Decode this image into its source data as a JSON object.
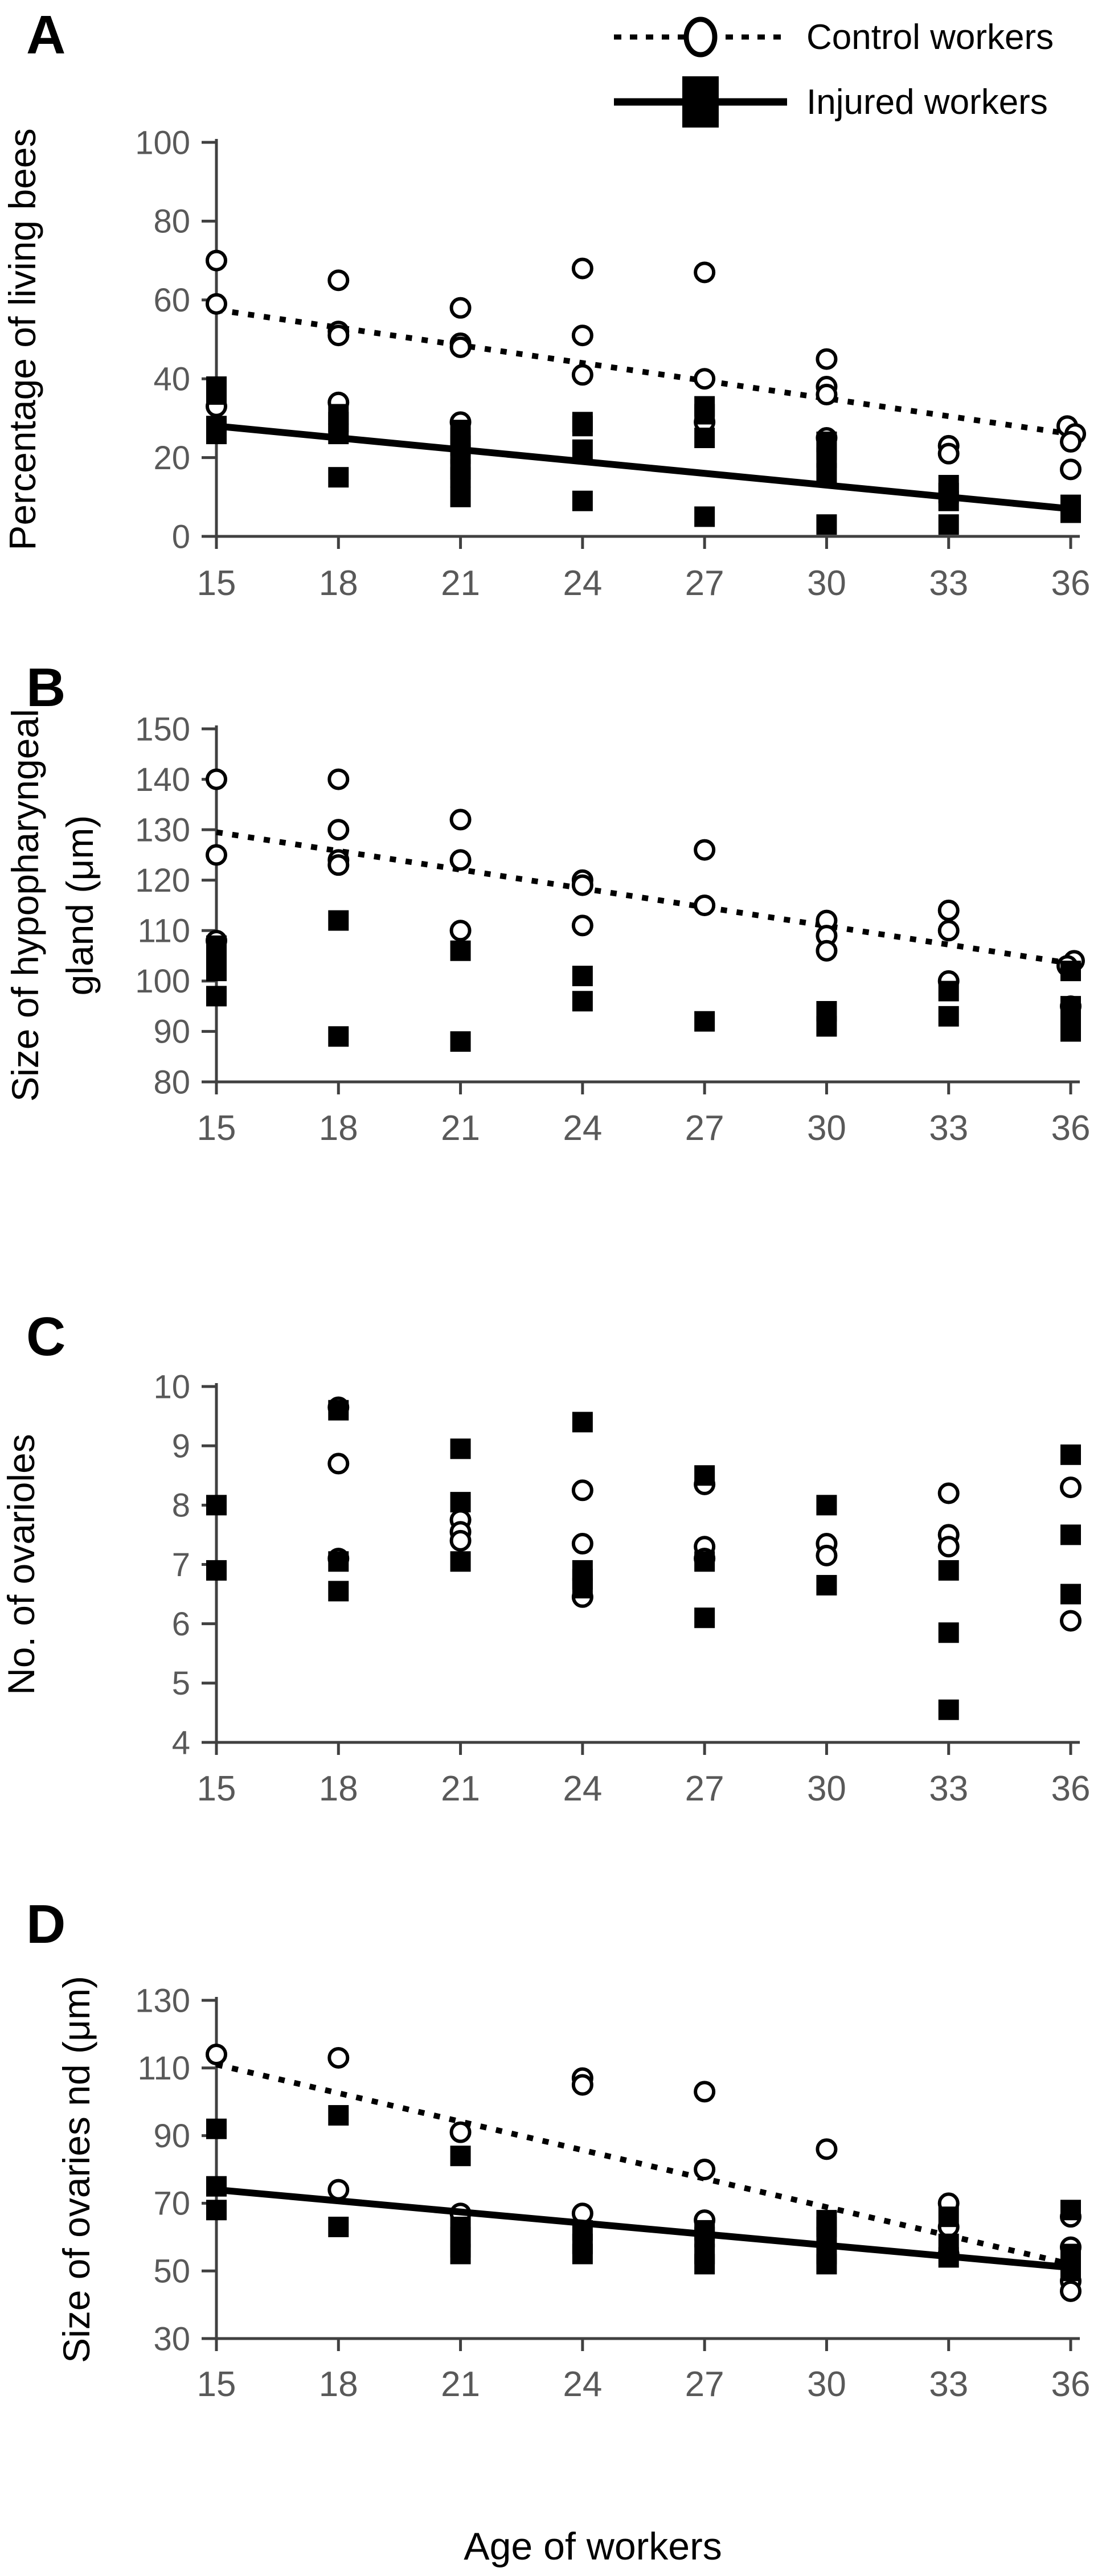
{
  "legend": {
    "control_label": "Control workers",
    "injured_label": "Injured workers"
  },
  "colors": {
    "marker": "#000000",
    "axis": "#404040",
    "tick_label": "#595959",
    "background": "#ffffff"
  },
  "chart_data": {
    "type": "scatter",
    "x": {
      "title": "Age of workers",
      "ticks": [
        15,
        18,
        21,
        24,
        27,
        30,
        33,
        36
      ],
      "min": 15,
      "max": 36
    },
    "panels": [
      {
        "label": "A",
        "ylabel_lines": [
          "Percentage of living bees"
        ],
        "ymin": 0,
        "ymax": 100,
        "ystep": 20,
        "series": [
          {
            "name": "Control workers",
            "marker": "circle",
            "trend": "dotted",
            "trend_line": [
              [
                15,
                57.5
              ],
              [
                36,
                26
              ]
            ],
            "points": [
              [
                15,
                70
              ],
              [
                15,
                59
              ],
              [
                15,
                33
              ],
              [
                18,
                65
              ],
              [
                18,
                52
              ],
              [
                18,
                51
              ],
              [
                18,
                34
              ],
              [
                21,
                58
              ],
              [
                21,
                49
              ],
              [
                21,
                48
              ],
              [
                21,
                29
              ],
              [
                24,
                68
              ],
              [
                24,
                51
              ],
              [
                24,
                41
              ],
              [
                27,
                67
              ],
              [
                27,
                40
              ],
              [
                27,
                29
              ],
              [
                30,
                45
              ],
              [
                30,
                38
              ],
              [
                30,
                36
              ],
              [
                30,
                25
              ],
              [
                33,
                23
              ],
              [
                33,
                21
              ],
              [
                36,
                28,
                -6
              ],
              [
                36,
                26,
                8
              ],
              [
                36,
                24
              ],
              [
                36,
                17
              ]
            ]
          },
          {
            "name": "Injured workers",
            "marker": "square",
            "trend": "solid",
            "trend_line": [
              [
                15,
                28
              ],
              [
                36,
                7
              ]
            ],
            "points": [
              [
                15,
                38
              ],
              [
                15,
                36
              ],
              [
                15,
                28
              ],
              [
                15,
                26
              ],
              [
                18,
                31
              ],
              [
                18,
                29
              ],
              [
                18,
                26
              ],
              [
                18,
                15
              ],
              [
                21,
                27
              ],
              [
                21,
                25
              ],
              [
                21,
                23
              ],
              [
                21,
                21
              ],
              [
                21,
                17
              ],
              [
                21,
                15
              ],
              [
                21,
                10
              ],
              [
                24,
                29
              ],
              [
                24,
                28
              ],
              [
                24,
                22
              ],
              [
                24,
                9
              ],
              [
                27,
                33
              ],
              [
                27,
                31
              ],
              [
                27,
                25
              ],
              [
                27,
                5
              ],
              [
                30,
                24
              ],
              [
                30,
                22
              ],
              [
                30,
                20
              ],
              [
                30,
                16
              ],
              [
                30,
                3
              ],
              [
                33,
                13
              ],
              [
                33,
                11
              ],
              [
                33,
                9
              ],
              [
                33,
                3
              ],
              [
                36,
                8
              ],
              [
                36,
                6
              ]
            ]
          }
        ]
      },
      {
        "label": "B",
        "ylabel_lines": [
          "Size of hypopharyngeal",
          "gland (μm)"
        ],
        "ymin": 80,
        "ymax": 150,
        "ystep": 10,
        "series": [
          {
            "name": "Control workers",
            "marker": "circle",
            "trend": "dotted",
            "trend_line": [
              [
                15,
                129.5
              ],
              [
                36,
                103.5
              ]
            ],
            "points": [
              [
                15,
                140
              ],
              [
                15,
                125
              ],
              [
                15,
                108
              ],
              [
                18,
                140
              ],
              [
                18,
                130
              ],
              [
                18,
                124
              ],
              [
                18,
                123
              ],
              [
                21,
                132
              ],
              [
                21,
                124
              ],
              [
                21,
                110
              ],
              [
                24,
                120
              ],
              [
                24,
                119
              ],
              [
                24,
                111
              ],
              [
                27,
                126
              ],
              [
                27,
                115
              ],
              [
                30,
                112
              ],
              [
                30,
                109
              ],
              [
                30,
                106
              ],
              [
                33,
                114
              ],
              [
                33,
                110
              ],
              [
                33,
                100
              ],
              [
                36,
                104,
                6
              ],
              [
                36,
                103,
                -6
              ],
              [
                36,
                95
              ]
            ]
          },
          {
            "name": "Injured workers",
            "marker": "square",
            "trend": "none",
            "trend_line": null,
            "points": [
              [
                15,
                107
              ],
              [
                15,
                104
              ],
              [
                15,
                102
              ],
              [
                15,
                97
              ],
              [
                18,
                112
              ],
              [
                18,
                89
              ],
              [
                21,
                106
              ],
              [
                21,
                88
              ],
              [
                24,
                101
              ],
              [
                24,
                96
              ],
              [
                27,
                92
              ],
              [
                30,
                94
              ],
              [
                30,
                91
              ],
              [
                33,
                98
              ],
              [
                33,
                93
              ],
              [
                36,
                102
              ],
              [
                36,
                95
              ],
              [
                36,
                93
              ],
              [
                36,
                90
              ]
            ]
          }
        ]
      },
      {
        "label": "C",
        "ylabel_lines": [
          "No. of ovarioles"
        ],
        "ymin": 4,
        "ymax": 10,
        "ystep": 1,
        "series": [
          {
            "name": "Control workers",
            "marker": "circle",
            "trend": "none",
            "trend_line": null,
            "points": [
              [
                18,
                9.65
              ],
              [
                18,
                8.7
              ],
              [
                18,
                7.1
              ],
              [
                21,
                7.75
              ],
              [
                21,
                7.55
              ],
              [
                21,
                7.4
              ],
              [
                24,
                8.25
              ],
              [
                24,
                7.35
              ],
              [
                24,
                6.45
              ],
              [
                27,
                8.35
              ],
              [
                27,
                7.3
              ],
              [
                27,
                7.1
              ],
              [
                30,
                7.35
              ],
              [
                30,
                7.15
              ],
              [
                33,
                8.2
              ],
              [
                33,
                7.5
              ],
              [
                33,
                7.3
              ],
              [
                36,
                8.3
              ],
              [
                36,
                6.05
              ]
            ]
          },
          {
            "name": "Injured workers",
            "marker": "square",
            "trend": "none",
            "trend_line": null,
            "points": [
              [
                15,
                8.0
              ],
              [
                15,
                6.9
              ],
              [
                18,
                9.6
              ],
              [
                18,
                7.05
              ],
              [
                18,
                6.55
              ],
              [
                21,
                8.95
              ],
              [
                21,
                8.05
              ],
              [
                21,
                7.05
              ],
              [
                24,
                9.4
              ],
              [
                24,
                6.9
              ],
              [
                24,
                6.75
              ],
              [
                24,
                6.6
              ],
              [
                27,
                8.5
              ],
              [
                27,
                7.05
              ],
              [
                27,
                6.1
              ],
              [
                30,
                8.0
              ],
              [
                30,
                6.65
              ],
              [
                33,
                6.9
              ],
              [
                33,
                5.85
              ],
              [
                33,
                4.55
              ],
              [
                36,
                8.85
              ],
              [
                36,
                7.5
              ],
              [
                36,
                6.5
              ]
            ]
          }
        ]
      },
      {
        "label": "D",
        "ylabel_lines": [
          "Size of ovaries nd (μm)"
        ],
        "ymin": 30,
        "ymax": 130,
        "ystep": 20,
        "series": [
          {
            "name": "Control workers",
            "marker": "circle",
            "trend": "dotted",
            "trend_line": [
              [
                15,
                111
              ],
              [
                36,
                52
              ]
            ],
            "points": [
              [
                15,
                114
              ],
              [
                18,
                113
              ],
              [
                18,
                74
              ],
              [
                21,
                91
              ],
              [
                21,
                67
              ],
              [
                24,
                107
              ],
              [
                24,
                105
              ],
              [
                24,
                67
              ],
              [
                27,
                103
              ],
              [
                27,
                80
              ],
              [
                27,
                65
              ],
              [
                30,
                86
              ],
              [
                33,
                70
              ],
              [
                33,
                63
              ],
              [
                33,
                55
              ],
              [
                36,
                66
              ],
              [
                36,
                57
              ],
              [
                36,
                47
              ],
              [
                36,
                44
              ]
            ]
          },
          {
            "name": "Injured workers",
            "marker": "square",
            "trend": "solid",
            "trend_line": [
              [
                15,
                74
              ],
              [
                36,
                51
              ]
            ],
            "points": [
              [
                15,
                92
              ],
              [
                15,
                75
              ],
              [
                15,
                68
              ],
              [
                18,
                96
              ],
              [
                18,
                63
              ],
              [
                21,
                84
              ],
              [
                21,
                63
              ],
              [
                21,
                60
              ],
              [
                21,
                57
              ],
              [
                21,
                55
              ],
              [
                24,
                62
              ],
              [
                24,
                58
              ],
              [
                24,
                55
              ],
              [
                27,
                62
              ],
              [
                27,
                60
              ],
              [
                27,
                55
              ],
              [
                27,
                52
              ],
              [
                30,
                65
              ],
              [
                30,
                63
              ],
              [
                30,
                60
              ],
              [
                30,
                55
              ],
              [
                30,
                52
              ],
              [
                33,
                66
              ],
              [
                33,
                58
              ],
              [
                33,
                54
              ],
              [
                36,
                68
              ],
              [
                36,
                55
              ],
              [
                36,
                52
              ],
              [
                36,
                50
              ]
            ]
          }
        ]
      }
    ]
  }
}
